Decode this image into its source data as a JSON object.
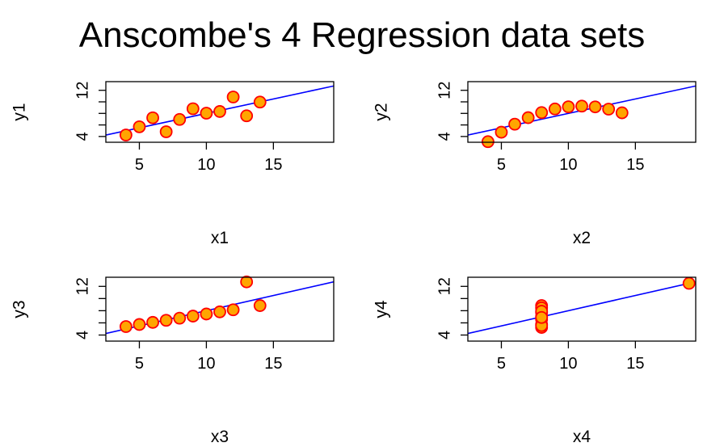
{
  "title": "Anscombe's 4 Regression data sets",
  "chart_data": [
    {
      "type": "scatter",
      "xlabel": "x1",
      "ylabel": "y1",
      "xlim": [
        2.5,
        19.5
      ],
      "ylim": [
        3,
        13.5
      ],
      "xticks": [
        5,
        10,
        15
      ],
      "yticks": [
        4,
        12
      ],
      "x": [
        10,
        8,
        13,
        9,
        11,
        14,
        6,
        4,
        12,
        7,
        5
      ],
      "y": [
        8.04,
        6.95,
        7.58,
        8.81,
        8.33,
        9.96,
        7.24,
        4.26,
        10.84,
        4.82,
        5.68
      ],
      "regression": {
        "intercept": 3.0,
        "slope": 0.5
      },
      "point_fill": "#FFA500",
      "point_stroke": "#FF0000",
      "line_color": "#0000FF"
    },
    {
      "type": "scatter",
      "xlabel": "x2",
      "ylabel": "y2",
      "xlim": [
        2.5,
        19.5
      ],
      "ylim": [
        3,
        13.5
      ],
      "xticks": [
        5,
        10,
        15
      ],
      "yticks": [
        4,
        12
      ],
      "x": [
        10,
        8,
        13,
        9,
        11,
        14,
        6,
        4,
        12,
        7,
        5
      ],
      "y": [
        9.14,
        8.14,
        8.74,
        8.77,
        9.26,
        8.1,
        6.13,
        3.1,
        9.13,
        7.26,
        4.74
      ],
      "regression": {
        "intercept": 3.0,
        "slope": 0.5
      },
      "point_fill": "#FFA500",
      "point_stroke": "#FF0000",
      "line_color": "#0000FF"
    },
    {
      "type": "scatter",
      "xlabel": "x3",
      "ylabel": "y3",
      "xlim": [
        2.5,
        19.5
      ],
      "ylim": [
        3,
        13.5
      ],
      "xticks": [
        5,
        10,
        15
      ],
      "yticks": [
        4,
        12
      ],
      "x": [
        10,
        8,
        13,
        9,
        11,
        14,
        6,
        4,
        12,
        7,
        5
      ],
      "y": [
        7.46,
        6.77,
        12.74,
        7.11,
        7.81,
        8.84,
        6.08,
        5.39,
        8.15,
        6.42,
        5.73
      ],
      "regression": {
        "intercept": 3.0,
        "slope": 0.5
      },
      "point_fill": "#FFA500",
      "point_stroke": "#FF0000",
      "line_color": "#0000FF"
    },
    {
      "type": "scatter",
      "xlabel": "x4",
      "ylabel": "y4",
      "xlim": [
        2.5,
        19.5
      ],
      "ylim": [
        3,
        13.5
      ],
      "xticks": [
        5,
        10,
        15
      ],
      "yticks": [
        4,
        12
      ],
      "x": [
        8,
        8,
        8,
        8,
        8,
        8,
        8,
        19,
        8,
        8,
        8
      ],
      "y": [
        6.58,
        5.76,
        7.71,
        8.84,
        8.47,
        7.04,
        5.25,
        12.5,
        5.56,
        7.91,
        6.89
      ],
      "regression": {
        "intercept": 3.0,
        "slope": 0.5
      },
      "point_fill": "#FFA500",
      "point_stroke": "#FF0000",
      "line_color": "#0000FF"
    }
  ]
}
